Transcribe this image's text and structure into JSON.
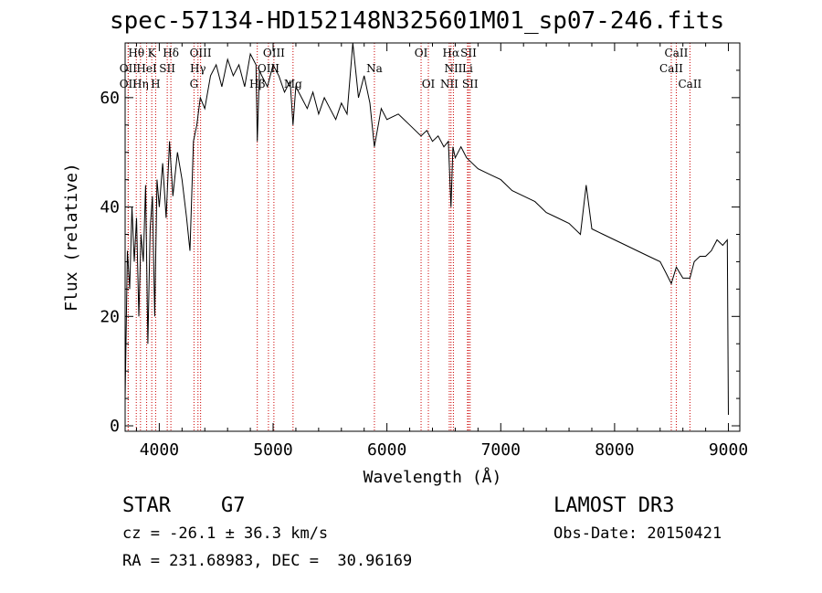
{
  "chart_data": {
    "type": "line",
    "title": "spec-57134-HD152148N325601M01_sp07-246.fits",
    "xlabel": "Wavelength (Å)",
    "ylabel": "Flux (relative)",
    "xlim": [
      3700,
      9100
    ],
    "ylim": [
      -1,
      70
    ],
    "xticks": [
      4000,
      5000,
      6000,
      7000,
      8000,
      9000
    ],
    "yticks": [
      0,
      20,
      40,
      60
    ],
    "grid": false,
    "series": [
      {
        "name": "spectrum",
        "x": [
          3700,
          3720,
          3740,
          3760,
          3780,
          3800,
          3820,
          3840,
          3860,
          3880,
          3900,
          3920,
          3940,
          3960,
          3980,
          4000,
          4030,
          4060,
          4090,
          4120,
          4160,
          4200,
          4240,
          4270,
          4300,
          4330,
          4360,
          4400,
          4450,
          4500,
          4550,
          4600,
          4650,
          4700,
          4750,
          4800,
          4850,
          4861,
          4880,
          4900,
          4950,
          5000,
          5050,
          5100,
          5150,
          5175,
          5200,
          5250,
          5300,
          5350,
          5400,
          5450,
          5500,
          5550,
          5600,
          5650,
          5700,
          5750,
          5800,
          5850,
          5890,
          5950,
          6000,
          6100,
          6200,
          6300,
          6350,
          6400,
          6450,
          6500,
          6540,
          6563,
          6580,
          6600,
          6650,
          6700,
          6750,
          6800,
          6900,
          7000,
          7100,
          7200,
          7300,
          7400,
          7500,
          7600,
          7700,
          7750,
          7800,
          7900,
          8000,
          8100,
          8200,
          8300,
          8400,
          8450,
          8498,
          8542,
          8600,
          8662,
          8700,
          8750,
          8800,
          8850,
          8900,
          8950,
          8990,
          9000
        ],
        "values": [
          5,
          32,
          25,
          40,
          30,
          38,
          20,
          35,
          30,
          44,
          15,
          36,
          42,
          20,
          45,
          40,
          48,
          38,
          52,
          42,
          50,
          45,
          38,
          32,
          52,
          55,
          60,
          58,
          64,
          66,
          62,
          67,
          64,
          66,
          62,
          68,
          66,
          52,
          65,
          64,
          62,
          66,
          64,
          61,
          63,
          55,
          62,
          60,
          58,
          61,
          57,
          60,
          58,
          56,
          59,
          57,
          70,
          60,
          64,
          59,
          51,
          58,
          56,
          57,
          55,
          53,
          54,
          52,
          53,
          51,
          52,
          40,
          51,
          49,
          51,
          49,
          48,
          47,
          46,
          45,
          43,
          42,
          41,
          39,
          38,
          37,
          35,
          44,
          36,
          35,
          34,
          33,
          32,
          31,
          30,
          28,
          26,
          29,
          27,
          27,
          30,
          31,
          31,
          32,
          34,
          33,
          34,
          2
        ]
      }
    ],
    "lines": [
      {
        "label": "Hθ",
        "x": 3798,
        "row": 1
      },
      {
        "label": "K",
        "x": 3934,
        "row": 1
      },
      {
        "label": "Hδ",
        "x": 4102,
        "row": 1
      },
      {
        "label": "OIII",
        "x": 4363,
        "row": 1
      },
      {
        "label": "OIII",
        "x": 5007,
        "row": 1
      },
      {
        "label": "OI",
        "x": 6300,
        "row": 1
      },
      {
        "label": "Hα",
        "x": 6563,
        "row": 1
      },
      {
        "label": "SII",
        "x": 6717,
        "row": 1
      },
      {
        "label": "CaII",
        "x": 8542,
        "row": 1
      },
      {
        "label": "OII",
        "x": 3727,
        "row": 2
      },
      {
        "label": "HeI",
        "x": 3889,
        "row": 2
      },
      {
        "label": "SII",
        "x": 4070,
        "row": 2
      },
      {
        "label": "Hγ",
        "x": 4340,
        "row": 2
      },
      {
        "label": "OIII",
        "x": 4959,
        "row": 2
      },
      {
        "label": "Na",
        "x": 5890,
        "row": 2
      },
      {
        "label": "NII",
        "x": 6584,
        "row": 2
      },
      {
        "label": "Li",
        "x": 6708,
        "row": 2
      },
      {
        "label": "CaII",
        "x": 8498,
        "row": 2
      },
      {
        "label": "OII",
        "x": 3727,
        "row": 3
      },
      {
        "label": "Hη",
        "x": 3835,
        "row": 3
      },
      {
        "label": "H",
        "x": 3968,
        "row": 3
      },
      {
        "label": "G",
        "x": 4305,
        "row": 3
      },
      {
        "label": "Hβ",
        "x": 4861,
        "row": 3
      },
      {
        "label": "Mg",
        "x": 5175,
        "row": 3
      },
      {
        "label": "OI",
        "x": 6364,
        "row": 3
      },
      {
        "label": "NII",
        "x": 6548,
        "row": 3
      },
      {
        "label": "SII",
        "x": 6731,
        "row": 3
      },
      {
        "label": "CaII",
        "x": 8662,
        "row": 3
      }
    ],
    "colors": {
      "spectrum": "#000000",
      "lines": "#cc0000",
      "axes": "#000000"
    }
  },
  "info": {
    "object_class": "STAR",
    "subclass": "G7",
    "survey": "LAMOST DR3",
    "cz": "cz = -26.1 ± 36.3 km/s",
    "obs_date": "Obs-Date: 20150421",
    "radec": "RA = 231.68983, DEC =  30.96169"
  }
}
